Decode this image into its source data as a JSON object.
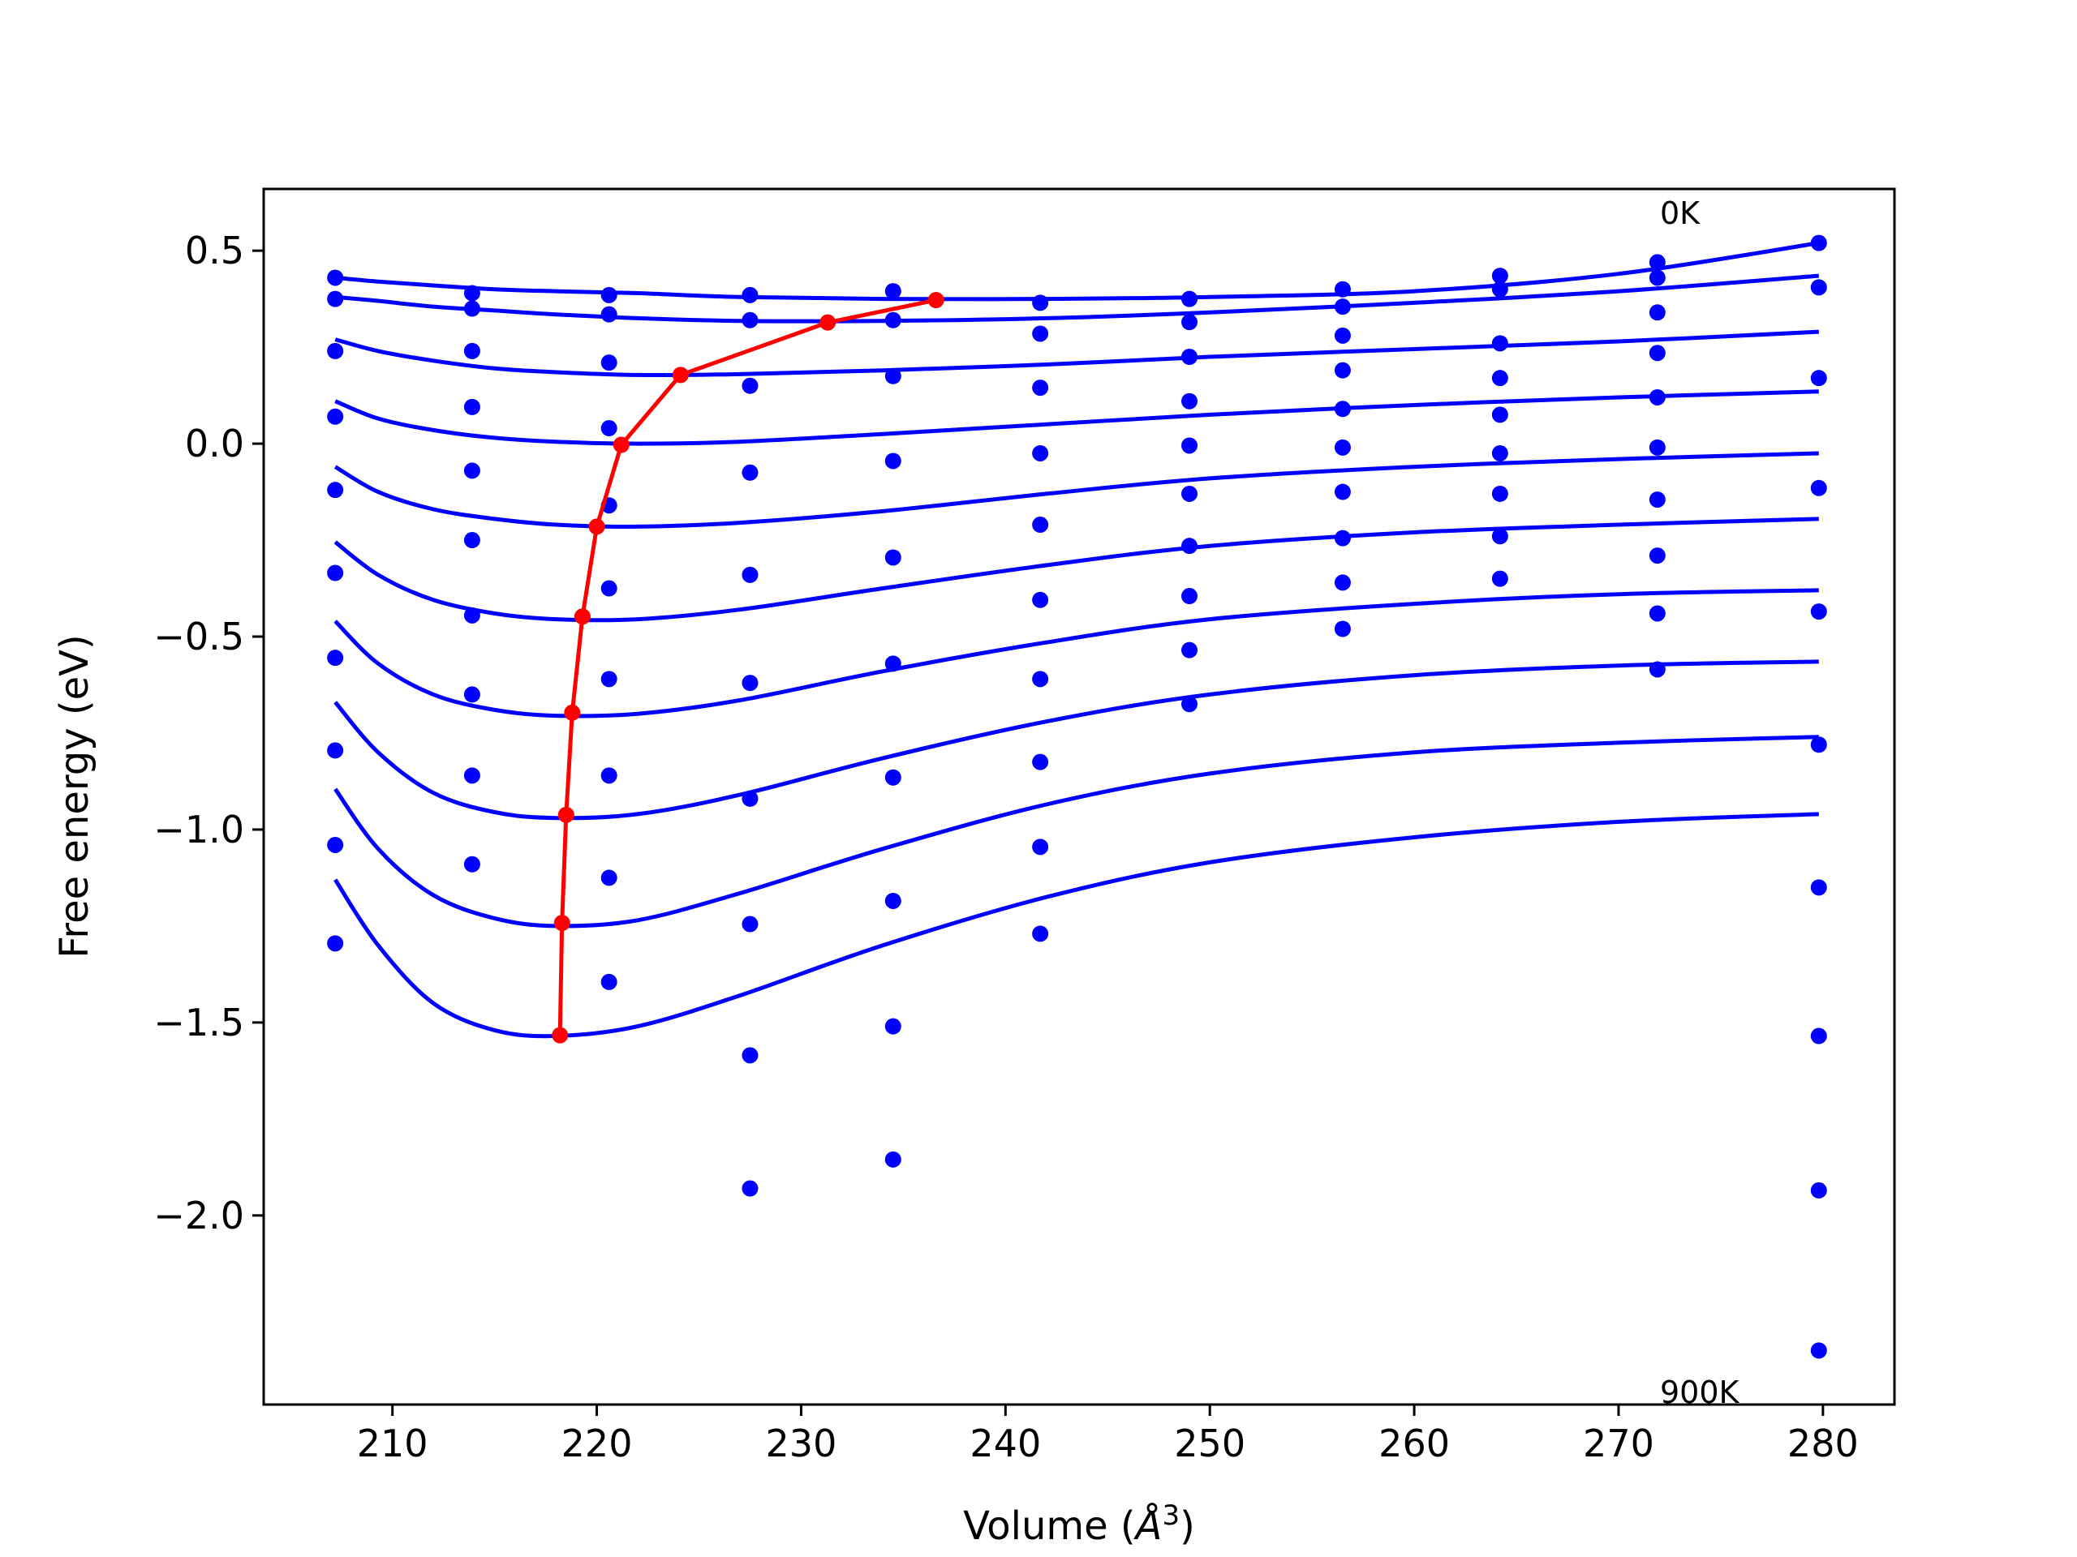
{
  "chart_data": {
    "type": "scatter",
    "xlabel_prefix": "Volume (",
    "xlabel_unit": "Å",
    "xlabel_exp": "3",
    "xlabel_suffix": ")",
    "ylabel": "Free energy (eV)",
    "xlim": [
      203.7,
      283.5
    ],
    "ylim": [
      -2.49,
      0.66
    ],
    "xticks": [
      210,
      220,
      230,
      240,
      250,
      260,
      270,
      280
    ],
    "yticks": [
      0.5,
      0.0,
      -0.5,
      -1.0,
      -1.5,
      -2.0
    ],
    "ytick_labels": [
      "0.5",
      "0.0",
      "−0.5",
      "−1.0",
      "−1.5",
      "−2.0"
    ],
    "annotations": [
      {
        "text": "0K",
        "x": 272,
        "y": 0.56
      },
      {
        "text": "900K",
        "x": 272,
        "y": -2.46
      }
    ],
    "colors": {
      "data": "#0000ff",
      "fit": "#0000ff",
      "minima": "#ff0000",
      "frame": "#000000"
    },
    "volumes": [
      207.2,
      213.9,
      220.6,
      227.5,
      234.5,
      241.7,
      249.0,
      256.5,
      264.2,
      271.9,
      279.8
    ],
    "data_series": [
      {
        "y": [
          0.43,
          0.39,
          0.385,
          0.385,
          0.395,
          0.365,
          0.375,
          0.4,
          0.435,
          0.47,
          0.52
        ]
      },
      {
        "y": [
          0.375,
          0.35,
          0.335,
          0.32,
          0.32,
          0.285,
          0.315,
          0.355,
          0.4,
          0.43,
          0.405
        ]
      },
      {
        "y": [
          0.24,
          0.24,
          0.21,
          0.15,
          0.175,
          0.145,
          0.225,
          0.28,
          0.26,
          0.34,
          0.17
        ]
      },
      {
        "y": [
          0.07,
          0.095,
          0.04,
          -0.075,
          -0.045,
          -0.025,
          0.11,
          0.19,
          0.17,
          0.235,
          -0.115
        ]
      },
      {
        "y": [
          -0.12,
          -0.07,
          -0.16,
          -0.34,
          -0.295,
          -0.21,
          -0.005,
          0.09,
          0.075,
          0.12,
          -0.435
        ]
      },
      {
        "y": [
          -0.335,
          -0.25,
          -0.375,
          -0.62,
          -0.57,
          -0.405,
          -0.13,
          -0.01,
          -0.025,
          -0.01,
          -0.78
        ]
      },
      {
        "y": [
          -0.555,
          -0.445,
          -0.61,
          -0.92,
          -0.865,
          -0.61,
          -0.265,
          -0.125,
          -0.13,
          -0.145,
          -1.15
        ]
      },
      {
        "y": [
          -0.795,
          -0.65,
          -0.86,
          -1.245,
          -1.185,
          -0.825,
          -0.395,
          -0.245,
          -0.24,
          -0.29,
          -1.535
        ]
      },
      {
        "y": [
          -1.04,
          -0.86,
          -1.125,
          -1.585,
          -1.51,
          -1.045,
          -0.535,
          -0.36,
          -0.35,
          -0.44,
          -1.935
        ]
      },
      {
        "y": [
          -1.295,
          -1.09,
          -1.395,
          -1.93,
          -1.855,
          -1.27,
          -0.675,
          -0.48,
          null,
          -0.585,
          -2.35
        ]
      }
    ],
    "fit_x": [
      207.2,
      209.3,
      212.0,
      215.0,
      218.0,
      222.0,
      227.0,
      234.0,
      242.0,
      250.0,
      260.0,
      270.0,
      279.8
    ],
    "fit_series": [
      {
        "y": [
          0.43,
          0.42,
          0.41,
          0.4,
          0.395,
          0.39,
          0.38,
          0.375,
          0.375,
          0.38,
          0.395,
          0.44,
          0.52
        ]
      },
      {
        "y": [
          0.38,
          0.37,
          0.355,
          0.345,
          0.335,
          0.325,
          0.318,
          0.318,
          0.325,
          0.34,
          0.365,
          0.395,
          0.435
        ]
      },
      {
        "y": [
          0.27,
          0.24,
          0.215,
          0.195,
          0.185,
          0.178,
          0.18,
          0.19,
          0.205,
          0.225,
          0.245,
          0.265,
          0.29
        ]
      },
      {
        "y": [
          0.11,
          0.065,
          0.035,
          0.015,
          0.005,
          0.0,
          0.005,
          0.025,
          0.05,
          0.075,
          0.1,
          0.12,
          0.135
        ]
      },
      {
        "y": [
          -0.06,
          -0.125,
          -0.17,
          -0.195,
          -0.21,
          -0.215,
          -0.205,
          -0.175,
          -0.13,
          -0.09,
          -0.06,
          -0.04,
          -0.025
        ]
      },
      {
        "y": [
          -0.255,
          -0.34,
          -0.405,
          -0.44,
          -0.455,
          -0.455,
          -0.43,
          -0.375,
          -0.315,
          -0.265,
          -0.23,
          -0.21,
          -0.195
        ]
      },
      {
        "y": [
          -0.46,
          -0.57,
          -0.65,
          -0.69,
          -0.705,
          -0.7,
          -0.665,
          -0.59,
          -0.515,
          -0.455,
          -0.415,
          -0.39,
          -0.38
        ]
      },
      {
        "y": [
          -0.67,
          -0.8,
          -0.905,
          -0.955,
          -0.97,
          -0.96,
          -0.91,
          -0.815,
          -0.72,
          -0.65,
          -0.6,
          -0.575,
          -0.565
        ]
      },
      {
        "y": [
          -0.895,
          -1.05,
          -1.17,
          -1.23,
          -1.25,
          -1.235,
          -1.165,
          -1.05,
          -0.935,
          -0.855,
          -0.8,
          -0.775,
          -0.76
        ]
      },
      {
        "y": [
          -1.13,
          -1.3,
          -1.45,
          -1.52,
          -1.535,
          -1.51,
          -1.43,
          -1.3,
          -1.175,
          -1.085,
          -1.02,
          -0.98,
          -0.96
        ]
      }
    ],
    "minima": {
      "x": [
        236.6,
        231.3,
        224.1,
        221.2,
        220.0,
        219.3,
        218.8,
        218.5,
        218.3,
        218.2
      ],
      "y": [
        0.372,
        0.314,
        0.178,
        -0.003,
        -0.215,
        -0.448,
        -0.697,
        -0.962,
        -1.242,
        -1.533
      ]
    }
  }
}
